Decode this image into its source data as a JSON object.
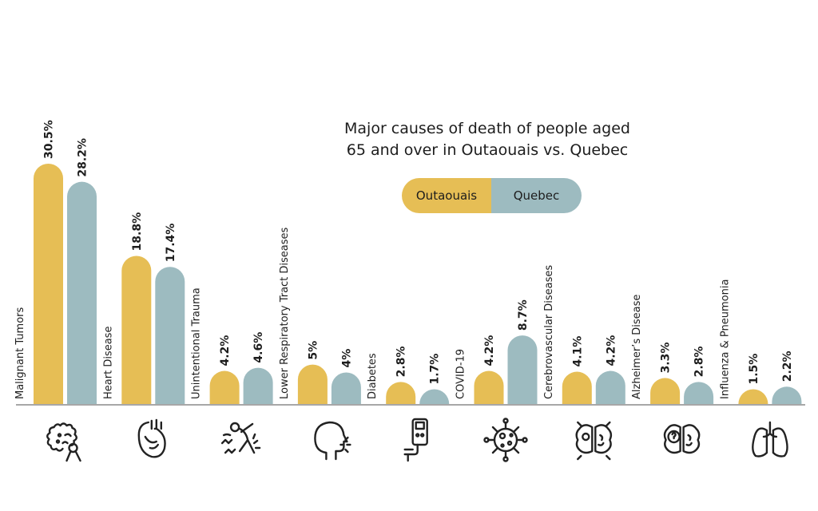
{
  "chart_data": {
    "type": "bar",
    "title": "Major causes of death of people aged 65 and over in Outaouais vs. Quebec",
    "title_lines": [
      "Major causes of death of people aged",
      "65 and over in Outaouais vs. Quebec"
    ],
    "xlabel": "",
    "ylabel": "",
    "ylim": [
      0,
      31
    ],
    "grid": false,
    "legend_position": "top-right",
    "categories": [
      "Malignant Tumors",
      "Heart Disease",
      "Unintentional Trauma",
      "Lower Respiratory Tract Diseases",
      "Diabetes",
      "COVID-19",
      "Cerebrovascular Diseases",
      "Alzheimer’s Disease",
      "Influenza & Pneumonia"
    ],
    "icons": [
      "cancer-cell-ribbon-icon",
      "heart-icon",
      "falling-person-icon",
      "coughing-head-icon",
      "glucose-meter-icon",
      "virus-icon",
      "brain-stroke-icon",
      "brain-question-icon",
      "lungs-icon"
    ],
    "series": [
      {
        "name": "Outaouais",
        "color": "#E6BE55",
        "values": [
          30.5,
          18.8,
          4.2,
          5,
          2.8,
          4.2,
          4.1,
          3.3,
          1.5
        ],
        "labels": [
          "30.5%",
          "18.8%",
          "4.2%",
          "5%",
          "2.8%",
          "4.2%",
          "4.1%",
          "3.3%",
          "1.5%"
        ]
      },
      {
        "name": "Quebec",
        "color": "#9DBBC0",
        "values": [
          28.2,
          17.4,
          4.6,
          4,
          1.7,
          8.7,
          4.2,
          2.8,
          2.2
        ],
        "labels": [
          "28.2%",
          "17.4%",
          "4.6%",
          "4%",
          "1.7%",
          "8.7%",
          "4.2%",
          "2.8%",
          "2.2%"
        ]
      }
    ]
  }
}
